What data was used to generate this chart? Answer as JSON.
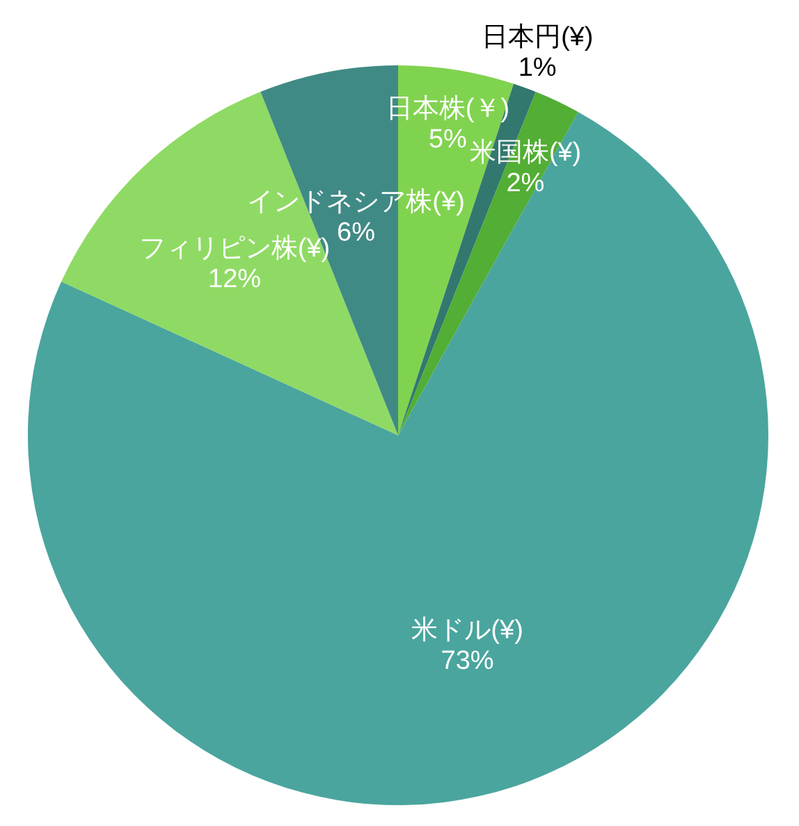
{
  "chart_data": {
    "type": "pie",
    "categories": [
      "日本株(￥)",
      "日本円(¥)",
      "米国株(¥)",
      "米ドル(¥)",
      "フィリピン株(¥)",
      "インドネシア株(¥)"
    ],
    "values": [
      5,
      1,
      2,
      73,
      12,
      6
    ],
    "value_labels": [
      "5%",
      "1%",
      "2%",
      "73%",
      "12%",
      "6%"
    ],
    "colors": [
      "#80d34f",
      "#32786f",
      "#52ae34",
      "#4aa59e",
      "#8fda64",
      "#408a85"
    ]
  }
}
